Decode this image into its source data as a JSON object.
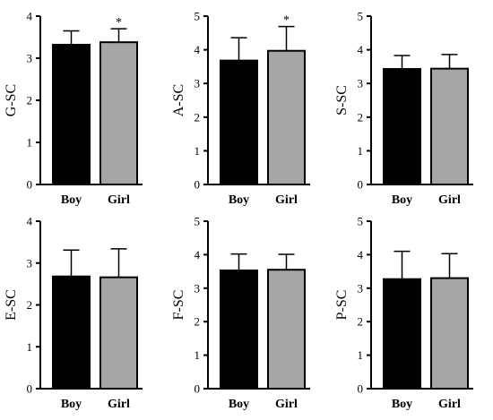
{
  "chart_data": [
    {
      "type": "bar",
      "ylabel": "G-SC",
      "ylim": [
        0,
        4
      ],
      "yticks": [
        0,
        1,
        2,
        3,
        4
      ],
      "categories": [
        "Boy",
        "Girl"
      ],
      "values": [
        3.32,
        3.38
      ],
      "errors": [
        0.33,
        0.32
      ],
      "colors": [
        "#000000",
        "#a6a6a6"
      ],
      "annotations": [
        "",
        "*"
      ]
    },
    {
      "type": "bar",
      "ylabel": "A-SC",
      "ylim": [
        0,
        5
      ],
      "yticks": [
        0,
        1,
        2,
        3,
        4,
        5
      ],
      "categories": [
        "Boy",
        "Girl"
      ],
      "values": [
        3.68,
        3.97
      ],
      "errors": [
        0.68,
        0.72
      ],
      "colors": [
        "#000000",
        "#a6a6a6"
      ],
      "annotations": [
        "",
        "*"
      ]
    },
    {
      "type": "bar",
      "ylabel": "S-SC",
      "ylim": [
        0,
        5
      ],
      "yticks": [
        0,
        1,
        2,
        3,
        4,
        5
      ],
      "categories": [
        "Boy",
        "Girl"
      ],
      "values": [
        3.43,
        3.44
      ],
      "errors": [
        0.4,
        0.42
      ],
      "colors": [
        "#000000",
        "#a6a6a6"
      ],
      "annotations": [
        "",
        ""
      ]
    },
    {
      "type": "bar",
      "ylabel": "E-SC",
      "ylim": [
        0,
        4
      ],
      "yticks": [
        0,
        1,
        2,
        3,
        4
      ],
      "categories": [
        "Boy",
        "Girl"
      ],
      "values": [
        2.68,
        2.66
      ],
      "errors": [
        0.63,
        0.68
      ],
      "colors": [
        "#000000",
        "#a6a6a6"
      ],
      "annotations": [
        "",
        ""
      ]
    },
    {
      "type": "bar",
      "ylabel": "F-SC",
      "ylim": [
        0,
        5
      ],
      "yticks": [
        0,
        1,
        2,
        3,
        4,
        5
      ],
      "categories": [
        "Boy",
        "Girl"
      ],
      "values": [
        3.53,
        3.55
      ],
      "errors": [
        0.49,
        0.46
      ],
      "colors": [
        "#000000",
        "#a6a6a6"
      ],
      "annotations": [
        "",
        ""
      ]
    },
    {
      "type": "bar",
      "ylabel": "P-SC",
      "ylim": [
        0,
        5
      ],
      "yticks": [
        0,
        1,
        2,
        3,
        4,
        5
      ],
      "categories": [
        "Boy",
        "Girl"
      ],
      "values": [
        3.27,
        3.3
      ],
      "errors": [
        0.83,
        0.73
      ],
      "colors": [
        "#000000",
        "#a6a6a6"
      ],
      "annotations": [
        "",
        ""
      ]
    }
  ]
}
